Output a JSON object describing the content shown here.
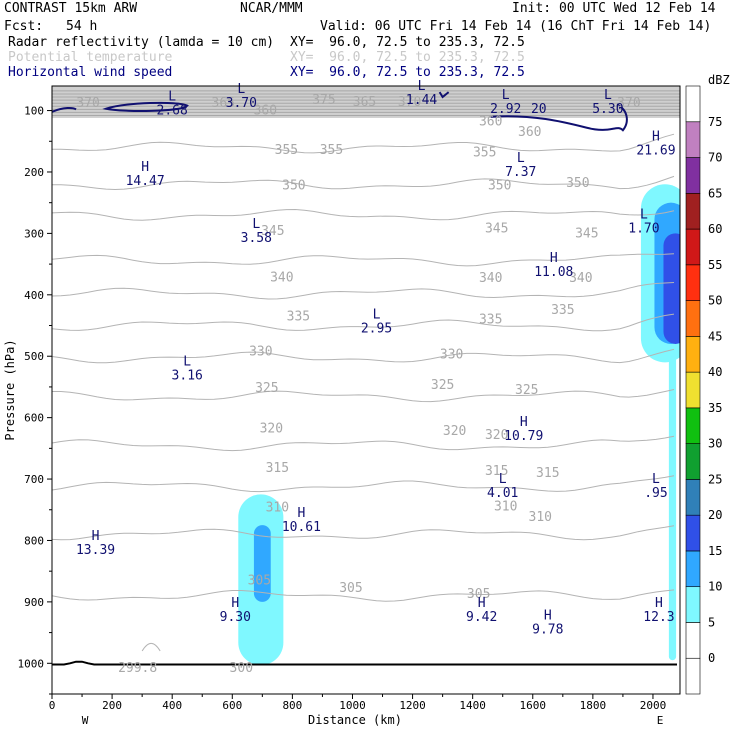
{
  "header": {
    "model": "CONTRAST 15km ARW",
    "center": "NCAR/MMM",
    "init": "Init: 00 UTC Wed 12 Feb 14",
    "fcst_label": "Fcst:",
    "fcst_value": "54 h",
    "valid": "Valid: 06 UTC Fri 14 Feb 14 (16 ChT Fri 14 Feb 14)",
    "fields": [
      {
        "name": "Radar reflectivity (lamda = 10 cm)",
        "xy": "XY=  96.0, 72.5 to 235.3, 72.5",
        "color": "#000000"
      },
      {
        "name": "Potential temperature",
        "xy": "XY=  96.0, 72.5 to 235.3, 72.5",
        "color": "#c8c8c8"
      },
      {
        "name": "Horizontal wind speed",
        "xy": "XY=  96.0, 72.5 to 235.3, 72.5",
        "color": "#000080"
      }
    ]
  },
  "chart_data": {
    "type": "contour-cross-section",
    "xlabel": "Distance (km)",
    "ylabel": "Pressure (hPa)",
    "xlim": [
      0,
      2090
    ],
    "ylim": [
      1050,
      60
    ],
    "x_ticks": [
      0,
      200,
      400,
      600,
      800,
      1000,
      1200,
      1400,
      1600,
      1800,
      2000
    ],
    "y_ticks": [
      100,
      200,
      300,
      400,
      500,
      600,
      700,
      800,
      900,
      1000
    ],
    "end_labels": {
      "left": "W",
      "right": "E"
    },
    "colorbar": {
      "units": "dBZ",
      "levels": [
        0,
        5,
        10,
        15,
        20,
        25,
        30,
        35,
        40,
        45,
        50,
        55,
        60,
        65,
        70,
        75
      ],
      "colors": [
        "#ffffff",
        "#ffffff",
        "#7ff8ff",
        "#30a8ff",
        "#3050e8",
        "#3080b8",
        "#10a030",
        "#10c010",
        "#f0e030",
        "#ffb010",
        "#ff7010",
        "#ff3010",
        "#d01818",
        "#a02020",
        "#8030a0",
        "#c080c0",
        "#ffffff"
      ]
    },
    "theta_levels": [
      {
        "value": 305,
        "p": 890
      },
      {
        "value": 310,
        "p": 790
      },
      {
        "value": 315,
        "p": 712
      },
      {
        "value": 320,
        "p": 645
      },
      {
        "value": 325,
        "p": 565
      },
      {
        "value": 330,
        "p": 502
      },
      {
        "value": 335,
        "p": 450
      },
      {
        "value": 340,
        "p": 398
      },
      {
        "value": 345,
        "p": 344
      },
      {
        "value": 350,
        "p": 270
      },
      {
        "value": 355,
        "p": 220
      },
      {
        "value": 360,
        "p": 160
      }
    ],
    "theta_labels": [
      {
        "text": "370",
        "x": 120,
        "p": 88
      },
      {
        "text": "365",
        "x": 570,
        "p": 88
      },
      {
        "text": "360",
        "x": 710,
        "p": 100
      },
      {
        "text": "375",
        "x": 905,
        "p": 83
      },
      {
        "text": "365",
        "x": 1040,
        "p": 86
      },
      {
        "text": "370",
        "x": 1190,
        "p": 86
      },
      {
        "text": "360",
        "x": 1460,
        "p": 118
      },
      {
        "text": "360",
        "x": 1590,
        "p": 135
      },
      {
        "text": "370",
        "x": 1920,
        "p": 88
      },
      {
        "text": "355",
        "x": 780,
        "p": 164
      },
      {
        "text": "355",
        "x": 930,
        "p": 164
      },
      {
        "text": "355",
        "x": 1440,
        "p": 168
      },
      {
        "text": "350",
        "x": 805,
        "p": 222
      },
      {
        "text": "350",
        "x": 1490,
        "p": 222
      },
      {
        "text": "350",
        "x": 1750,
        "p": 218
      },
      {
        "text": "345",
        "x": 735,
        "p": 296
      },
      {
        "text": "345",
        "x": 1480,
        "p": 292
      },
      {
        "text": "345",
        "x": 1780,
        "p": 300
      },
      {
        "text": "340",
        "x": 765,
        "p": 372
      },
      {
        "text": "340",
        "x": 1460,
        "p": 373
      },
      {
        "text": "340",
        "x": 1760,
        "p": 373
      },
      {
        "text": "335",
        "x": 820,
        "p": 435
      },
      {
        "text": "335",
        "x": 1460,
        "p": 440
      },
      {
        "text": "335",
        "x": 1700,
        "p": 425
      },
      {
        "text": "330",
        "x": 695,
        "p": 492
      },
      {
        "text": "330",
        "x": 1330,
        "p": 497
      },
      {
        "text": "325",
        "x": 715,
        "p": 552
      },
      {
        "text": "325",
        "x": 1300,
        "p": 547
      },
      {
        "text": "325",
        "x": 1580,
        "p": 555
      },
      {
        "text": "320",
        "x": 730,
        "p": 618
      },
      {
        "text": "320",
        "x": 1340,
        "p": 622
      },
      {
        "text": "320",
        "x": 1480,
        "p": 628
      },
      {
        "text": "315",
        "x": 750,
        "p": 682
      },
      {
        "text": "315",
        "x": 1480,
        "p": 687
      },
      {
        "text": "315",
        "x": 1650,
        "p": 690
      },
      {
        "text": "310",
        "x": 750,
        "p": 746
      },
      {
        "text": "310",
        "x": 1510,
        "p": 745
      },
      {
        "text": "310",
        "x": 1625,
        "p": 762
      },
      {
        "text": "305",
        "x": 690,
        "p": 865
      },
      {
        "text": "305",
        "x": 995,
        "p": 877
      },
      {
        "text": "305",
        "x": 1420,
        "p": 887
      },
      {
        "text": "299.8",
        "x": 285,
        "p": 1008
      },
      {
        "text": "300",
        "x": 630,
        "p": 1008
      }
    ],
    "wind_extrema": [
      {
        "kind": "L",
        "value": "2.68",
        "x": 400,
        "p": 90
      },
      {
        "kind": "L",
        "value": "3.70",
        "x": 630,
        "p": 78
      },
      {
        "kind": "L",
        "value": "1.44",
        "x": 1230,
        "p": 73
      },
      {
        "kind": "L",
        "value": "2.92",
        "x": 1510,
        "p": 88
      },
      {
        "kind": "L",
        "value": "5.30",
        "x": 1850,
        "p": 88
      },
      {
        "kind": "H",
        "value": "21.69",
        "x": 2010,
        "p": 155
      },
      {
        "kind": "H",
        "value": "14.47",
        "x": 310,
        "p": 205
      },
      {
        "kind": "L",
        "value": "7.37",
        "x": 1560,
        "p": 190
      },
      {
        "kind": "L",
        "value": "1.70",
        "x": 1970,
        "p": 282
      },
      {
        "kind": "L",
        "value": "3.58",
        "x": 680,
        "p": 298
      },
      {
        "kind": "H",
        "value": "11.08",
        "x": 1670,
        "p": 353
      },
      {
        "kind": "L",
        "value": "2.95",
        "x": 1080,
        "p": 445
      },
      {
        "kind": "L",
        "value": "3.16",
        "x": 450,
        "p": 522
      },
      {
        "kind": "H",
        "value": "10.79",
        "x": 1570,
        "p": 620
      },
      {
        "kind": "L",
        "value": "4.01",
        "x": 1500,
        "p": 713
      },
      {
        "kind": "L",
        "value": ".95",
        "x": 2010,
        "p": 713
      },
      {
        "kind": "H",
        "value": "10.61",
        "x": 830,
        "p": 768
      },
      {
        "kind": "H",
        "value": "13.39",
        "x": 145,
        "p": 806
      },
      {
        "kind": "H",
        "value": "9.30",
        "x": 610,
        "p": 915
      },
      {
        "kind": "H",
        "value": "9.42",
        "x": 1430,
        "p": 915
      },
      {
        "kind": "H",
        "value": "9.78",
        "x": 1650,
        "p": 935
      },
      {
        "kind": "H",
        "value": "12.3",
        "x": 2020,
        "p": 915
      }
    ],
    "wind_grey_labels": [
      {
        "text": "20",
        "x": 1620,
        "p": 88
      }
    ],
    "wind_contour_value": 5,
    "terrain_p": 1002
  }
}
